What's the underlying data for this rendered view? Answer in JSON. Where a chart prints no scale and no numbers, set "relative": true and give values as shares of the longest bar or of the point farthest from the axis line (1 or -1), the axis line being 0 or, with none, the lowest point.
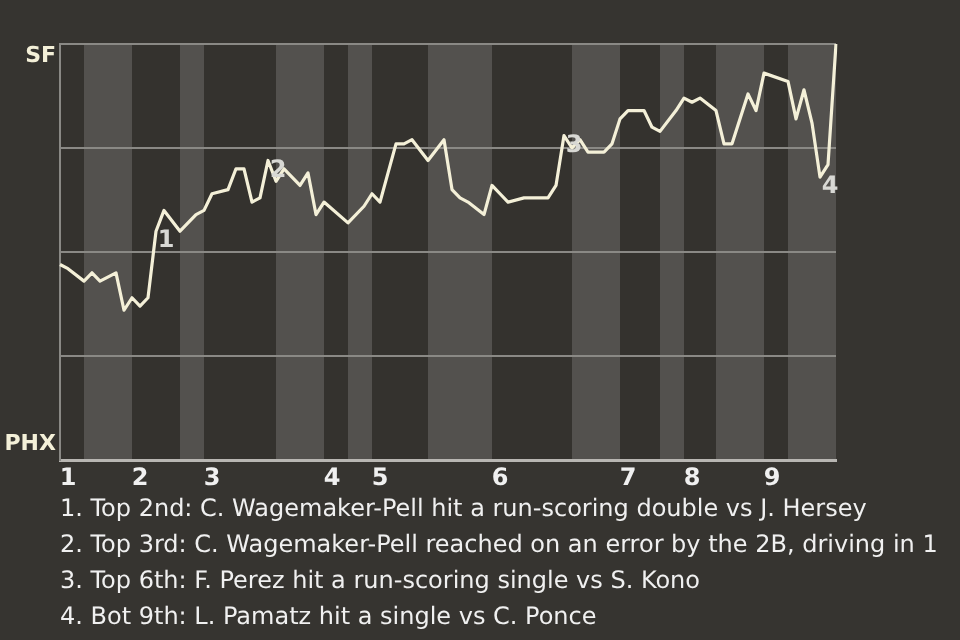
{
  "chart_data": {
    "type": "line",
    "relative": true,
    "categories": [
      null,
      "1",
      null,
      null,
      null,
      null,
      null,
      null,
      null,
      null,
      "2",
      null,
      null,
      null,
      null,
      null,
      null,
      null,
      null,
      "3",
      null,
      null,
      null,
      null,
      null,
      null,
      null,
      null,
      null,
      null,
      null,
      null,
      null,
      null,
      "4",
      null,
      null,
      null,
      null,
      null,
      "5",
      null,
      null,
      null,
      null,
      null,
      null,
      null,
      null,
      null,
      null,
      null,
      null,
      null,
      null,
      "6",
      null,
      null,
      null,
      null,
      null,
      null,
      null,
      null,
      null,
      null,
      null,
      null,
      null,
      null,
      null,
      "7",
      null,
      null,
      null,
      null,
      null,
      null,
      null,
      "8",
      null,
      null,
      null,
      null,
      null,
      null,
      null,
      null,
      null,
      "9",
      null,
      null,
      null,
      null,
      null,
      null,
      null,
      null
    ],
    "series": [
      {
        "color": "#f4f0d8",
        "values": [
          0.47,
          0.46,
          null,
          0.43,
          0.45,
          0.43,
          null,
          0.45,
          0.36,
          0.39,
          0.37,
          0.39,
          0.55,
          0.6,
          null,
          0.55,
          null,
          0.59,
          0.6,
          0.64,
          null,
          0.65,
          0.7,
          0.7,
          0.62,
          0.63,
          0.72,
          0.67,
          0.7,
          0.68,
          0.66,
          0.69,
          0.59,
          0.62,
          null,
          null,
          0.57,
          null,
          0.61,
          0.64,
          0.62,
          null,
          0.76,
          0.76,
          0.77,
          null,
          0.72,
          null,
          0.77,
          0.65,
          0.63,
          0.62,
          null,
          0.59,
          0.66,
          0.64,
          0.62,
          null,
          0.63,
          null,
          null,
          0.63,
          0.66,
          0.78,
          0.75,
          0.77,
          0.74,
          null,
          0.74,
          0.76,
          0.82,
          0.84,
          null,
          0.84,
          0.8,
          0.79,
          null,
          0.84,
          0.87,
          0.86,
          0.87,
          null,
          0.84,
          0.76,
          0.76,
          null,
          0.88,
          0.84,
          0.93,
          null,
          null,
          0.91,
          0.82,
          0.89,
          0.81,
          0.68,
          0.71,
          1
        ]
      }
    ],
    "grid": "y",
    "marker": "none",
    "line_style": "solid",
    "annotations": [
      "SF",
      "PHX",
      {
        "text": "1",
        "y": 0.55
      },
      {
        "text": "2",
        "y": 0.72
      },
      {
        "text": "3",
        "y": 0.78
      },
      {
        "text": "4",
        "y": 0.68
      },
      "1. Top 2nd: C. Wagemaker-Pell hit a run-scoring double vs J. Hersey",
      "2. Top 3rd: C. Wagemaker-Pell reached on an error by the 2B, driving in 1",
      "3. Top 6th: F. Perez hit a run-scoring single vs S. Kono",
      "4. Bot 9th: L. Pamatz hit a single vs C. Ponce"
    ]
  }
}
